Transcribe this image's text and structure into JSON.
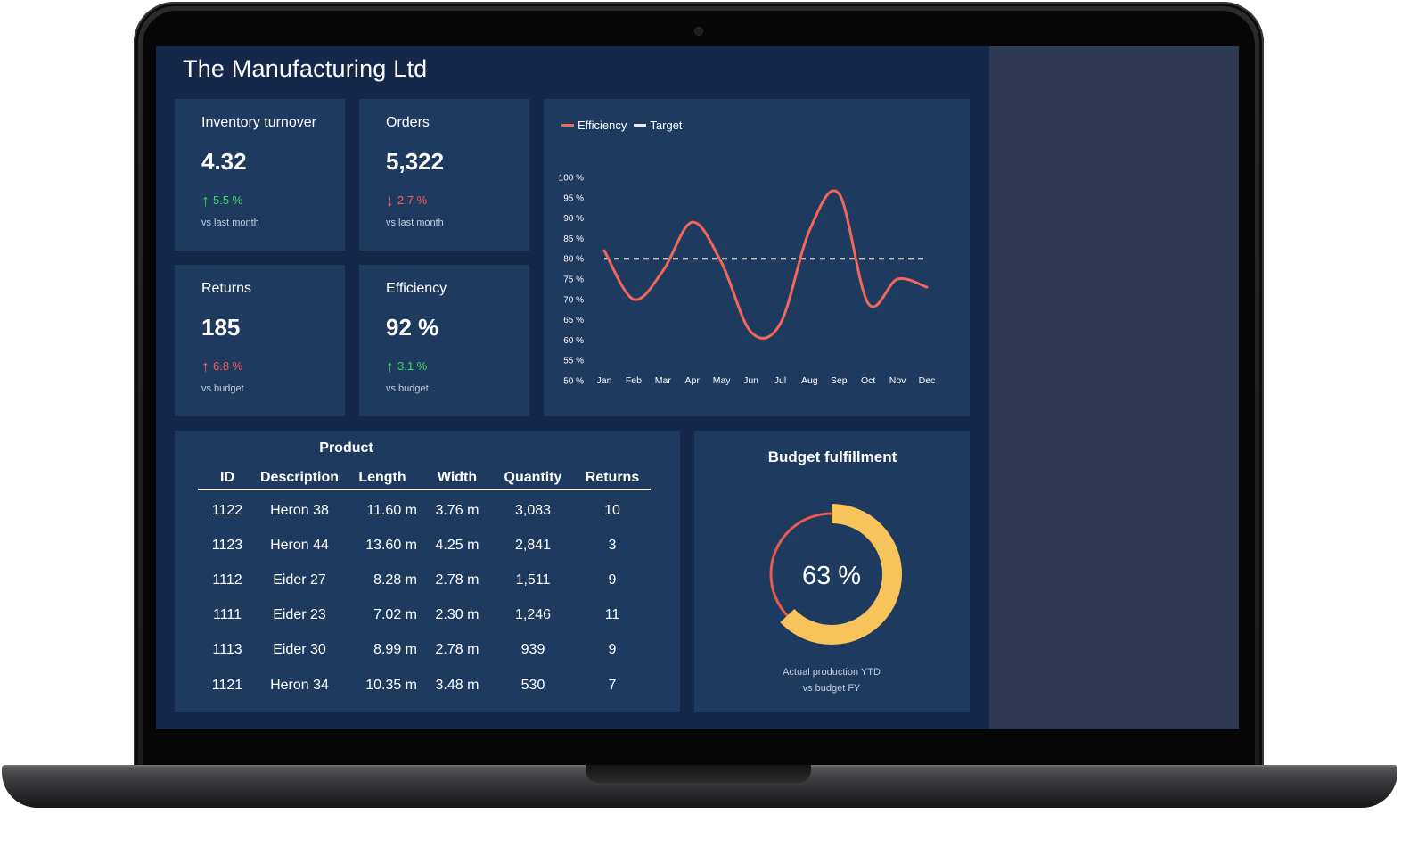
{
  "app": {
    "title": "The Manufacturing Ltd"
  },
  "colors": {
    "background": "#14294a",
    "panel": "#1e3a5f",
    "up_good": "#3ddc5a",
    "down_bad": "#ff5a5a",
    "efficiency_line": "#f2665c",
    "target_line": "#e8ecf2",
    "donut_fill": "#f7c45c",
    "donut_remaining": "#ea5a4e"
  },
  "kpis": [
    {
      "label": "Inventory turnover",
      "value": "4.32",
      "delta": "5.5 %",
      "direction": "up",
      "tone": "good",
      "note": "vs last month"
    },
    {
      "label": "Orders",
      "value": "5,322",
      "delta": "2.7 %",
      "direction": "down",
      "tone": "bad",
      "note": "vs last month"
    },
    {
      "label": "Returns",
      "value": "185",
      "delta": "6.8 %",
      "direction": "up",
      "tone": "bad",
      "note": "vs budget"
    },
    {
      "label": "Efficiency",
      "value": "92 %",
      "delta": "3.1 %",
      "direction": "up",
      "tone": "good",
      "note": "vs budget"
    }
  ],
  "chart_data": {
    "type": "line",
    "legend": [
      "Efficiency",
      "Target"
    ],
    "legend_position": "top-left",
    "categories": [
      "Jan",
      "Feb",
      "Mar",
      "Apr",
      "May",
      "Jun",
      "Jul",
      "Aug",
      "Sep",
      "Oct",
      "Nov",
      "Dec"
    ],
    "series": [
      {
        "name": "Efficiency",
        "values": [
          82,
          70,
          77,
          89,
          79,
          62,
          64,
          87,
          96,
          69,
          75,
          73
        ]
      },
      {
        "name": "Target",
        "values": [
          80,
          80,
          80,
          80,
          80,
          80,
          80,
          80,
          80,
          80,
          80,
          80
        ],
        "style": "dashed"
      }
    ],
    "ylim": [
      50,
      100
    ],
    "yticks": [
      "100 %",
      "95 %",
      "90 %",
      "85 %",
      "80 %",
      "75 %",
      "70 %",
      "65 %",
      "60 %",
      "55 %",
      "50 %"
    ],
    "grid": false
  },
  "table": {
    "caption": "Product",
    "columns": [
      "ID",
      "Description",
      "Length",
      "Width",
      "Quantity",
      "Returns"
    ],
    "rows": [
      [
        "1122",
        "Heron 38",
        "11.60 m",
        "3.76 m",
        "3,083",
        "10"
      ],
      [
        "1123",
        "Heron 44",
        "13.60 m",
        "4.25 m",
        "2,841",
        "3"
      ],
      [
        "1112",
        "Eider 27",
        "8.28 m",
        "2.78 m",
        "1,511",
        "9"
      ],
      [
        "1111",
        "Eider 23",
        "7.02 m",
        "2.30 m",
        "1,246",
        "11"
      ],
      [
        "1113",
        "Eider 30",
        "8.99 m",
        "2.78 m",
        "939",
        "9"
      ],
      [
        "1121",
        "Heron 34",
        "10.35 m",
        "3.48 m",
        "530",
        "7"
      ]
    ]
  },
  "budget": {
    "title": "Budget fulfillment",
    "value_label": "63 %",
    "fraction": 0.63,
    "note_line1": "Actual production YTD",
    "note_line2": "vs budget FY"
  }
}
